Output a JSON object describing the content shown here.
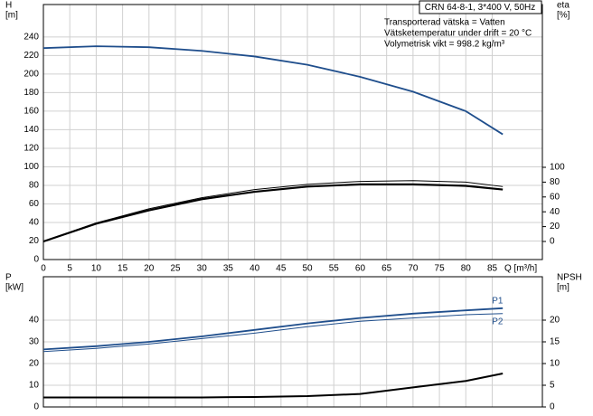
{
  "chart_data": [
    {
      "type": "line",
      "title": "CRN 64-8-1, 3*400 V, 50Hz",
      "annotations": [
        "Transporterad vätska = Vatten",
        "Vätsketemperatur under drift = 20 °C",
        "Volymetrisk vikt = 998.2 kg/m³"
      ],
      "ylabel": [
        "H",
        "[m]"
      ],
      "y2label": [
        "eta",
        "[%]"
      ],
      "xlabel": "Q [m³/h]",
      "x": [
        0,
        10,
        20,
        30,
        40,
        50,
        60,
        70,
        80,
        87
      ],
      "xlim": [
        0,
        94.5
      ],
      "xticks": [
        0,
        5,
        10,
        15,
        20,
        25,
        30,
        35,
        40,
        45,
        50,
        55,
        60,
        65,
        70,
        75,
        80,
        85
      ],
      "ylim": [
        0,
        275
      ],
      "yticks": [
        0,
        20,
        40,
        60,
        80,
        100,
        120,
        140,
        160,
        180,
        200,
        220,
        240
      ],
      "y2lim": [
        -24.4,
        319.5
      ],
      "y2ticks": [
        0,
        20,
        40,
        60,
        80,
        100
      ],
      "grid": true,
      "series": [
        {
          "color": "#1f4e8c",
          "line_width": 1.8,
          "values": [
            228,
            230,
            229,
            225,
            219,
            210,
            197,
            181,
            160,
            135
          ]
        },
        {
          "color": "#000000",
          "line_width": 1,
          "axis": "y2",
          "values": [
            0,
            25,
            44,
            59,
            70,
            77,
            81,
            82,
            80,
            74
          ]
        },
        {
          "color": "#000000",
          "line_width": 2.2,
          "axis": "y2",
          "values": [
            0,
            24,
            42,
            57,
            67,
            74,
            77,
            77,
            75,
            70
          ]
        }
      ]
    },
    {
      "type": "line",
      "ylabel": [
        "P",
        "[kW]"
      ],
      "y2label": [
        "NPSH",
        "[m]"
      ],
      "x": [
        0,
        10,
        20,
        30,
        40,
        50,
        60,
        70,
        80,
        87
      ],
      "xlim": [
        0,
        94.5
      ],
      "ylim": [
        0,
        60
      ],
      "yticks": [
        0,
        10,
        20,
        30,
        40
      ],
      "y2lim": [
        0,
        30
      ],
      "y2ticks": [
        0,
        5,
        10,
        15,
        20
      ],
      "grid": true,
      "series": [
        {
          "name": "P1",
          "color": "#1f4e8c",
          "line_width": 1.8,
          "values": [
            26.5,
            28,
            30,
            32.5,
            35.5,
            38.5,
            41,
            43,
            44.5,
            45.5
          ]
        },
        {
          "name": "P2",
          "color": "#1f4e8c",
          "line_width": 1,
          "values": [
            25.5,
            27,
            29,
            31.5,
            34,
            37,
            39.5,
            41,
            42.5,
            43
          ]
        },
        {
          "color": "#000000",
          "line_width": 2,
          "axis": "y2",
          "values": [
            2.2,
            2.2,
            2.2,
            2.2,
            2.3,
            2.5,
            3,
            4.5,
            6,
            7.7
          ]
        }
      ]
    }
  ]
}
